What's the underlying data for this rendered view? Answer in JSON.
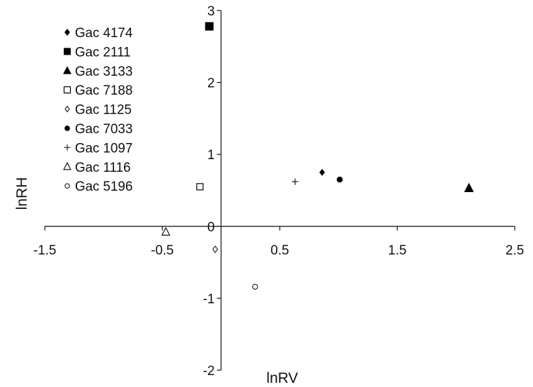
{
  "chart_data": {
    "type": "scatter",
    "title": "",
    "xlabel": "lnRV",
    "ylabel": "lnRH",
    "xlim": [
      -1.5,
      2.5
    ],
    "ylim": [
      -2,
      3
    ],
    "x_ticks": [
      -1.5,
      -0.5,
      0.5,
      1.5,
      2.5
    ],
    "x_tick_labels": [
      "-1.5",
      "-0.5",
      "0.5",
      "1.5",
      "2.5"
    ],
    "y_ticks": [
      -2,
      -1,
      0,
      1,
      2,
      3
    ],
    "y_tick_labels": [
      "-2",
      "-1",
      "0",
      "1",
      "2",
      "3"
    ],
    "grid": false,
    "legend_position": "top-left",
    "series": [
      {
        "name": "Gac 4174",
        "marker": "diamond-filled",
        "points": [
          {
            "x": 0.86,
            "y": 0.75
          }
        ]
      },
      {
        "name": "Gac 2111",
        "marker": "square-filled",
        "points": [
          {
            "x": -0.1,
            "y": 2.78
          }
        ]
      },
      {
        "name": "Gac 3133",
        "marker": "triangle-filled",
        "points": [
          {
            "x": 2.11,
            "y": 0.53
          }
        ]
      },
      {
        "name": "Gac 7188",
        "marker": "square-open",
        "points": [
          {
            "x": -0.18,
            "y": 0.55
          }
        ]
      },
      {
        "name": "Gac 1125",
        "marker": "diamond-open-small",
        "points": [
          {
            "x": -0.05,
            "y": -0.32
          }
        ]
      },
      {
        "name": "Gac 7033",
        "marker": "circle-filled",
        "points": [
          {
            "x": 1.01,
            "y": 0.65
          }
        ]
      },
      {
        "name": "Gac 1097",
        "marker": "plus",
        "points": [
          {
            "x": 0.63,
            "y": 0.62
          }
        ]
      },
      {
        "name": "Gac 1116",
        "marker": "triangle-open",
        "points": [
          {
            "x": -0.47,
            "y": -0.08
          }
        ]
      },
      {
        "name": "Gac 5196",
        "marker": "circle-open",
        "points": [
          {
            "x": 0.29,
            "y": -0.84
          }
        ]
      }
    ]
  }
}
